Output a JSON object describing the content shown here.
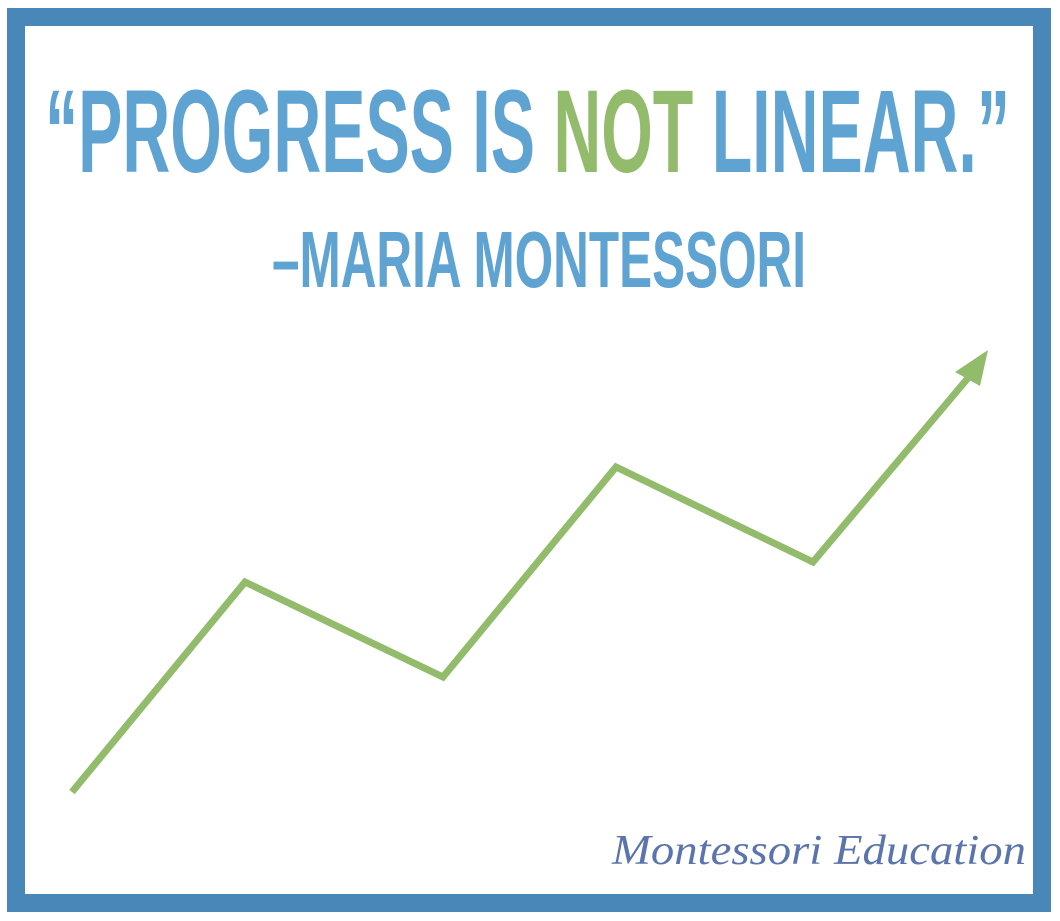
{
  "quote": {
    "before": "“PROGRESS IS",
    "highlight": "NOT",
    "after": "LINEAR.”"
  },
  "attribution": "–MARIA MONTESSORI",
  "brand": "Montessori Education"
}
